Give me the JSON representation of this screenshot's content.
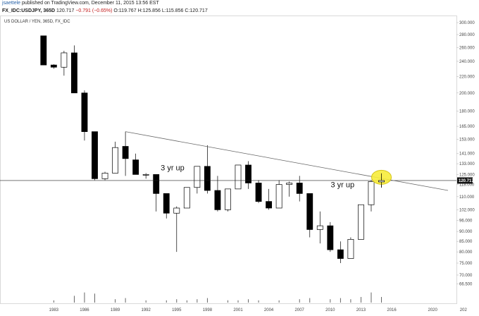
{
  "header": {
    "author": "jsaettele",
    "published": "published on TradingView.com, December 11, 2015 13:56 EST",
    "symbol": "FX_IDC:USDJPY, 365D",
    "price": "120.717",
    "change": "−0.791 (−0.65%)",
    "ohlc_open": "O:119.767",
    "ohlc_high": "H:125.856",
    "ohlc_low": "L:115.856",
    "ohlc_close": "C:120.717"
  },
  "chart_data": {
    "type": "candlestick",
    "series_label": "US DOLLAR / YEN, 365D, FX_IDC",
    "y_scale": "log",
    "ylim": [
      64,
      310
    ],
    "xlim": [
      1980.5,
      2021.5
    ],
    "y_ticks": [
      "300.000",
      "280.000",
      "260.000",
      "240.000",
      "220.000",
      "200.000",
      "180.000",
      "165.000",
      "153.000",
      "141.000",
      "133.000",
      "125.000",
      "118.000",
      "110.000",
      "102.000",
      "96.000",
      "90.000",
      "85.000",
      "80.000",
      "75.000",
      "70.000",
      "66.500"
    ],
    "x_ticks": [
      "1983",
      "1986",
      "1989",
      "1992",
      "1995",
      "1998",
      "2001",
      "2004",
      "2007",
      "2010",
      "2013",
      "2016",
      "2020",
      "202"
    ],
    "last_price": "120.717",
    "colors": {
      "up": "#ffffff",
      "down": "#000000",
      "outline": "#000000",
      "highlight": "#f7ec3b"
    },
    "candles": [
      {
        "year": 1982,
        "open": 278,
        "high": 278,
        "low": 235,
        "close": 235
      },
      {
        "year": 1983,
        "open": 235,
        "high": 236,
        "low": 230,
        "close": 232
      },
      {
        "year": 1984,
        "open": 232,
        "high": 255,
        "low": 221,
        "close": 252
      },
      {
        "year": 1985,
        "open": 252,
        "high": 263,
        "low": 200,
        "close": 200
      },
      {
        "year": 1986,
        "open": 200,
        "high": 203,
        "low": 152,
        "close": 160
      },
      {
        "year": 1987,
        "open": 160,
        "high": 160,
        "low": 121,
        "close": 122
      },
      {
        "year": 1988,
        "open": 122,
        "high": 127,
        "low": 121,
        "close": 126
      },
      {
        "year": 1989,
        "open": 126,
        "high": 151,
        "low": 126,
        "close": 146
      },
      {
        "year": 1990,
        "open": 147,
        "high": 160,
        "low": 124,
        "close": 137
      },
      {
        "year": 1991,
        "open": 136,
        "high": 141,
        "low": 125,
        "close": 125
      },
      {
        "year": 1992,
        "open": 125,
        "high": 126,
        "low": 122,
        "close": 125
      },
      {
        "year": 1993,
        "open": 125,
        "high": 125,
        "low": 101,
        "close": 112
      },
      {
        "year": 1994,
        "open": 112,
        "high": 112,
        "low": 97,
        "close": 100
      },
      {
        "year": 1995,
        "open": 100,
        "high": 104,
        "low": 80,
        "close": 103
      },
      {
        "year": 1996,
        "open": 103,
        "high": 116,
        "low": 103,
        "close": 116
      },
      {
        "year": 1997,
        "open": 116,
        "high": 131,
        "low": 112,
        "close": 131
      },
      {
        "year": 1998,
        "open": 131,
        "high": 148,
        "low": 112,
        "close": 114
      },
      {
        "year": 1999,
        "open": 114,
        "high": 124,
        "low": 101,
        "close": 102
      },
      {
        "year": 2000,
        "open": 102,
        "high": 115,
        "low": 101,
        "close": 115
      },
      {
        "year": 2001,
        "open": 115,
        "high": 132,
        "low": 115,
        "close": 132
      },
      {
        "year": 2002,
        "open": 132,
        "high": 135,
        "low": 115,
        "close": 119
      },
      {
        "year": 2003,
        "open": 119,
        "high": 121,
        "low": 106,
        "close": 107
      },
      {
        "year": 2004,
        "open": 107,
        "high": 115,
        "low": 102,
        "close": 103
      },
      {
        "year": 2005,
        "open": 103,
        "high": 121,
        "low": 103,
        "close": 118
      },
      {
        "year": 2006,
        "open": 118,
        "high": 120,
        "low": 110,
        "close": 119
      },
      {
        "year": 2007,
        "open": 119,
        "high": 124,
        "low": 107,
        "close": 112
      },
      {
        "year": 2008,
        "open": 112,
        "high": 112,
        "low": 87,
        "close": 91
      },
      {
        "year": 2009,
        "open": 91,
        "high": 101,
        "low": 84,
        "close": 93
      },
      {
        "year": 2010,
        "open": 93,
        "high": 95,
        "low": 80,
        "close": 81
      },
      {
        "year": 2011,
        "open": 81,
        "high": 85,
        "low": 75,
        "close": 77
      },
      {
        "year": 2012,
        "open": 77,
        "high": 87,
        "low": 77,
        "close": 86
      },
      {
        "year": 2013,
        "open": 86,
        "high": 105,
        "low": 86,
        "close": 105
      },
      {
        "year": 2014,
        "open": 105,
        "high": 121,
        "low": 101,
        "close": 120
      },
      {
        "year": 2015,
        "open": 119.767,
        "high": 125.856,
        "low": 115.856,
        "close": 120.717
      }
    ],
    "trendline": {
      "from": {
        "year": 1990,
        "value": 160
      },
      "to": {
        "year": 2021.5,
        "value": 114
      }
    },
    "horizontal_line": {
      "value": 120.717
    },
    "annotations": [
      {
        "text": "3 yr up",
        "year": 1994.6,
        "value": 128
      },
      {
        "text": "3 yr up",
        "year": 2011.2,
        "value": 116
      }
    ],
    "highlight": {
      "year": 2015,
      "value": 123
    },
    "volume": [
      {
        "year": 1983,
        "h": 0.2
      },
      {
        "year": 1985,
        "h": 0.6
      },
      {
        "year": 1986,
        "h": 0.9
      },
      {
        "year": 1987,
        "h": 0.8
      },
      {
        "year": 1989,
        "h": 0.3
      },
      {
        "year": 1990,
        "h": 0.4
      },
      {
        "year": 1992,
        "h": 0.2
      },
      {
        "year": 1994,
        "h": 0.2
      },
      {
        "year": 1995,
        "h": 0.3
      },
      {
        "year": 1996,
        "h": 0.2
      },
      {
        "year": 1997,
        "h": 0.3
      },
      {
        "year": 1998,
        "h": 0.4
      },
      {
        "year": 2000,
        "h": 0.2
      },
      {
        "year": 2001,
        "h": 0.2
      },
      {
        "year": 2002,
        "h": 0.3
      },
      {
        "year": 2003,
        "h": 0.2
      },
      {
        "year": 2005,
        "h": 0.2
      },
      {
        "year": 2007,
        "h": 0.3
      },
      {
        "year": 2008,
        "h": 0.4
      },
      {
        "year": 2010,
        "h": 0.3
      },
      {
        "year": 2011,
        "h": 0.4
      },
      {
        "year": 2012,
        "h": 0.3
      },
      {
        "year": 2013,
        "h": 0.5
      },
      {
        "year": 2014,
        "h": 0.9
      },
      {
        "year": 2015,
        "h": 0.5
      }
    ]
  }
}
